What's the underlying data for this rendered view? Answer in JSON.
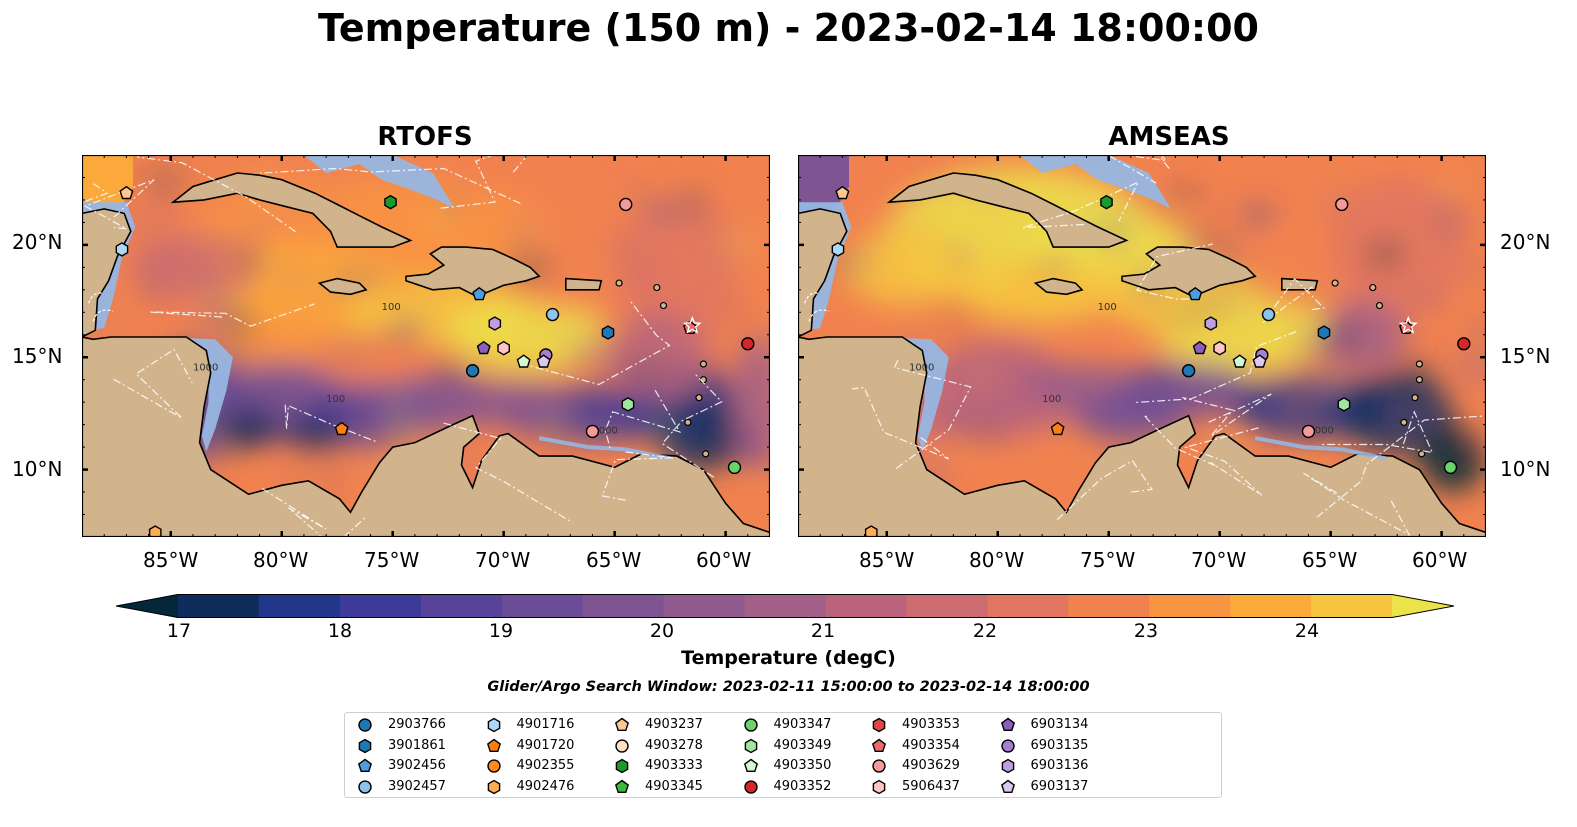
{
  "title": "Temperature (150 m) - 2023-02-14 18:00:00",
  "panels": [
    {
      "title": "RTOFS",
      "scheme": "rtofs"
    },
    {
      "title": "AMSEAS",
      "scheme": "amseas"
    }
  ],
  "axes": {
    "lon_ticks": [
      "85°W",
      "80°W",
      "75°W",
      "70°W",
      "65°W",
      "60°W"
    ],
    "lon_values": [
      -85,
      -80,
      -75,
      -70,
      -65,
      -60
    ],
    "lat_ticks": [
      "20°N",
      "15°N",
      "10°N"
    ],
    "lat_values": [
      20,
      15,
      10
    ],
    "lon_range": [
      -89,
      -58
    ],
    "lat_range": [
      7,
      24
    ]
  },
  "colorbar": {
    "label": "Temperature (degC)",
    "ticks": [
      "17",
      "18",
      "19",
      "20",
      "21",
      "22",
      "23",
      "24"
    ],
    "range": [
      16.5,
      24.5
    ],
    "extend": "both",
    "colors": [
      "#04283a",
      "#0f2d5c",
      "#23378a",
      "#3e3a9a",
      "#57439a",
      "#6b4c96",
      "#7e5492",
      "#905a8e",
      "#a35f87",
      "#b9647c",
      "#cd6c70",
      "#e17560",
      "#f1824f",
      "#f99443",
      "#fba93b",
      "#f7c53f",
      "#ece24a"
    ]
  },
  "contour_labels": [
    "100",
    "1000"
  ],
  "search_window": "Glider/Argo Search Window: 2023-02-11 15:00:00 to 2023-02-14 18:00:00",
  "colors": {
    "land": "#d2b48c",
    "shelf_water": "#97b6e1",
    "grid": "#ffffff"
  },
  "legend": [
    {
      "id": "2903766",
      "marker": "circle",
      "color": "#1f77b4"
    },
    {
      "id": "3901861",
      "marker": "hexagon",
      "color": "#1f77b4"
    },
    {
      "id": "3902456",
      "marker": "pentagon",
      "color": "#4f9be0"
    },
    {
      "id": "3902457",
      "marker": "circle",
      "color": "#8ec4ec"
    },
    {
      "id": "4901716",
      "marker": "hexagon",
      "color": "#aed8f5"
    },
    {
      "id": "4901720",
      "marker": "pentagon",
      "color": "#ff7f0e"
    },
    {
      "id": "4902355",
      "marker": "circle",
      "color": "#ff8c1a"
    },
    {
      "id": "4902476",
      "marker": "hexagon",
      "color": "#ffad55"
    },
    {
      "id": "4903237",
      "marker": "pentagon",
      "color": "#ffc78f"
    },
    {
      "id": "4903278",
      "marker": "circle",
      "color": "#ffe0c4"
    },
    {
      "id": "4903333",
      "marker": "hexagon",
      "color": "#1a9a2a"
    },
    {
      "id": "4903345",
      "marker": "pentagon",
      "color": "#3cb83c"
    },
    {
      "id": "4903347",
      "marker": "circle",
      "color": "#6cd26c"
    },
    {
      "id": "4903349",
      "marker": "hexagon",
      "color": "#a0e6a0"
    },
    {
      "id": "4903350",
      "marker": "pentagon",
      "color": "#d4f7d4"
    },
    {
      "id": "4903352",
      "marker": "circle",
      "color": "#d62728"
    },
    {
      "id": "4903353",
      "marker": "hexagon",
      "color": "#e04848"
    },
    {
      "id": "4903354",
      "marker": "pentagon",
      "color": "#ec6a6a"
    },
    {
      "id": "4903629",
      "marker": "circle",
      "color": "#f49a9a"
    },
    {
      "id": "5906437",
      "marker": "hexagon",
      "color": "#ffc4c4"
    },
    {
      "id": "6903134",
      "marker": "pentagon",
      "color": "#8c5fbf"
    },
    {
      "id": "6903135",
      "marker": "circle",
      "color": "#a57fd0"
    },
    {
      "id": "6903136",
      "marker": "hexagon",
      "color": "#bea0e0"
    },
    {
      "id": "6903137",
      "marker": "pentagon",
      "color": "#dac8f0"
    }
  ],
  "floats": [
    {
      "id": "4903237",
      "lon": -87.0,
      "lat": 22.3
    },
    {
      "id": "4901716",
      "lon": -87.2,
      "lat": 19.8
    },
    {
      "id": "4903333",
      "lon": -75.1,
      "lat": 21.9
    },
    {
      "id": "4903629",
      "lon": -64.5,
      "lat": 21.8
    },
    {
      "id": "3902456",
      "lon": -71.1,
      "lat": 17.8
    },
    {
      "id": "3902457",
      "lon": -67.8,
      "lat": 16.9
    },
    {
      "id": "6903136",
      "lon": -70.4,
      "lat": 16.5
    },
    {
      "id": "3901861",
      "lon": -65.3,
      "lat": 16.1
    },
    {
      "id": "6903134",
      "lon": -70.9,
      "lat": 15.4
    },
    {
      "id": "5906437",
      "lon": -70.0,
      "lat": 15.4
    },
    {
      "id": "6903135",
      "lon": -68.1,
      "lat": 15.1
    },
    {
      "id": "6903137",
      "lon": -68.2,
      "lat": 14.8
    },
    {
      "id": "4903350",
      "lon": -69.1,
      "lat": 14.8
    },
    {
      "id": "2903766",
      "lon": -71.4,
      "lat": 14.4
    },
    {
      "id": "4903349",
      "lon": -64.4,
      "lat": 12.9
    },
    {
      "id": "4903354",
      "lon": -61.6,
      "lat": 16.3
    },
    {
      "id": "4903352",
      "lon": -59.0,
      "lat": 15.6
    },
    {
      "id": "4901720",
      "lon": -77.3,
      "lat": 11.8
    },
    {
      "id": "4903629",
      "lon": -66.0,
      "lat": 11.7
    },
    {
      "id": "4903347",
      "lon": -59.6,
      "lat": 10.1
    },
    {
      "id": "4902476",
      "lon": -85.7,
      "lat": 7.2
    }
  ]
}
